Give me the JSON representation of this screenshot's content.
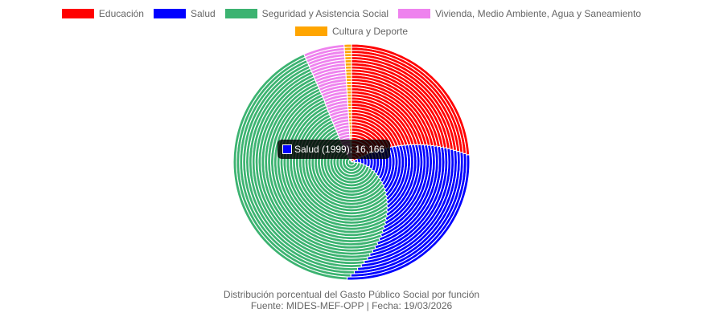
{
  "chart_data": {
    "type": "pie",
    "subtype": "concentric multi-year rings",
    "categories": [
      "Educación",
      "Salud",
      "Seguridad y Asistencia Social",
      "Vivienda, Medio Ambiente, Agua y Saneamiento",
      "Cultura y Deporte"
    ],
    "colors": [
      "#ff0000",
      "#0000ff",
      "#3cb371",
      "#ee82ee",
      "#ffa500"
    ],
    "series": [
      {
        "values": [
          16.5,
          8.3,
          67.0,
          7.2,
          1.0
        ]
      },
      {
        "values": [
          16.8,
          8.8,
          66.0,
          7.4,
          1.0
        ]
      },
      {
        "values": [
          17.0,
          9.5,
          65.2,
          7.3,
          1.0
        ]
      },
      {
        "values": [
          17.2,
          10.2,
          64.5,
          7.1,
          1.0
        ]
      },
      {
        "values": [
          17.5,
          11.0,
          63.5,
          7.0,
          1.0
        ]
      },
      {
        "values": [
          17.6,
          11.6,
          62.9,
          6.9,
          1.0
        ]
      },
      {
        "values": [
          17.8,
          12.3,
          62.1,
          6.8,
          1.0
        ]
      },
      {
        "values": [
          18.0,
          13.0,
          61.4,
          6.6,
          1.0
        ]
      },
      {
        "values": [
          18.2,
          13.6,
          60.7,
          6.5,
          1.0
        ]
      },
      {
        "values": [
          18.4,
          14.2,
          60.1,
          6.3,
          1.0
        ]
      },
      {
        "values": [
          18.6,
          14.8,
          59.4,
          6.2,
          1.0
        ]
      },
      {
        "values": [
          18.8,
          15.4,
          58.7,
          6.1,
          1.0
        ]
      },
      {
        "values": [
          19.0,
          15.9,
          58.0,
          6.1,
          1.0
        ]
      },
      {
        "values": [
          19.2,
          16.5,
          57.3,
          6.0,
          1.0
        ]
      },
      {
        "values": [
          19.4,
          17.0,
          56.6,
          6.0,
          1.0
        ]
      },
      {
        "values": [
          19.6,
          17.6,
          55.9,
          5.9,
          1.0
        ]
      },
      {
        "values": [
          19.8,
          18.1,
          55.2,
          5.9,
          1.0
        ]
      },
      {
        "values": [
          20.0,
          18.6,
          54.6,
          5.8,
          1.0
        ]
      },
      {
        "values": [
          20.2,
          19.1,
          53.9,
          5.8,
          1.0
        ]
      },
      {
        "values": [
          20.4,
          19.6,
          53.3,
          5.7,
          1.0
        ]
      },
      {
        "values": [
          20.6,
          20.1,
          52.6,
          5.7,
          1.0
        ]
      },
      {
        "values": [
          20.8,
          20.6,
          52.0,
          5.6,
          1.0
        ]
      },
      {
        "values": [
          21.0,
          21.0,
          51.4,
          5.6,
          1.0
        ]
      },
      {
        "values": [
          21.2,
          21.5,
          50.7,
          5.6,
          1.0
        ]
      },
      {
        "values": [
          21.4,
          21.9,
          50.1,
          5.6,
          1.0
        ]
      },
      {
        "values": [
          21.6,
          22.3,
          49.5,
          5.6,
          1.0
        ]
      },
      {
        "values": [
          21.8,
          22.7,
          48.9,
          5.6,
          1.0
        ]
      },
      {
        "values": [
          22.0,
          23.1,
          48.3,
          5.6,
          1.0
        ]
      },
      {
        "values": [
          22.2,
          23.5,
          47.7,
          5.6,
          1.0
        ]
      },
      {
        "values": [
          22.4,
          23.9,
          47.1,
          5.6,
          1.0
        ]
      },
      {
        "values": [
          22.6,
          24.3,
          46.5,
          5.6,
          1.0
        ]
      },
      {
        "values": [
          22.8,
          24.6,
          46.0,
          5.6,
          1.0
        ]
      },
      {
        "values": [
          23.0,
          25.0,
          45.4,
          5.6,
          1.0
        ]
      },
      {
        "values": [
          23.2,
          25.3,
          44.9,
          5.6,
          1.0
        ]
      },
      {
        "values": [
          23.4,
          25.7,
          44.3,
          5.6,
          1.0
        ]
      },
      {
        "values": [
          23.6,
          26.0,
          43.8,
          5.6,
          1.0
        ]
      },
      {
        "values": [
          23.8,
          26.3,
          43.3,
          5.6,
          1.0
        ]
      },
      {
        "values": [
          24.0,
          26.6,
          42.8,
          5.6,
          1.0
        ]
      }
    ],
    "legend_position": "top",
    "tooltip": {
      "label": "Salud (1999): 16,166",
      "color": "#0000ff"
    },
    "title": "Distribución porcentual del Gasto Público Social por función",
    "subtitle": "Fuente: MIDES-MEF-OPP | Fecha: 19/03/2026"
  }
}
